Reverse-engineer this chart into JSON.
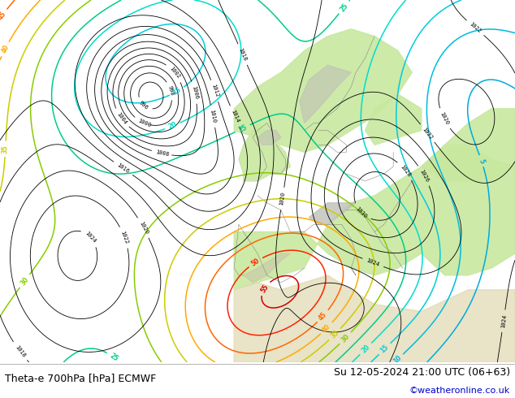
{
  "title_left": "Theta-e 700hPa [hPa] ECMWF",
  "title_right": "Su 12-05-2024 21:00 UTC (06+63)",
  "copyright": "©weatheronline.co.uk",
  "fig_width": 6.34,
  "fig_height": 4.9,
  "dpi": 100,
  "bottom_bar_color": "#ffffff",
  "title_font_size": 9,
  "copyright_color": "#0000cc",
  "copyright_font_size": 8,
  "ocean_color": "#e8e8dc",
  "land_color": "#c8e8a0",
  "mountain_color": "#b0b0a0",
  "label_fontsize": 5.5
}
